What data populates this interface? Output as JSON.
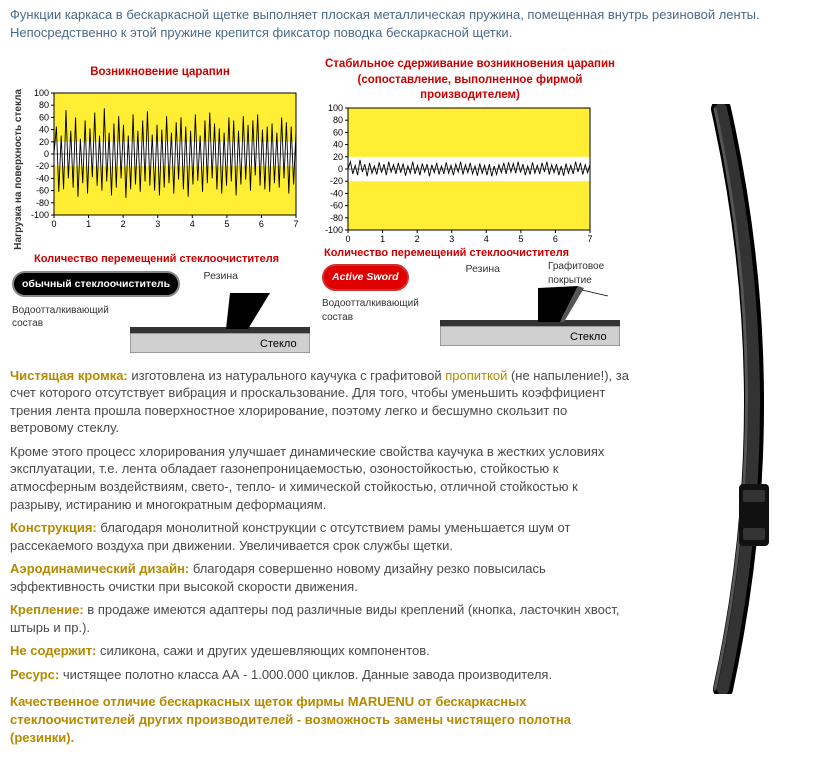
{
  "intro": "Функции каркаса в бескаркасной щетке выполняет плоская металлическая пружина, помещенная внутрь резиновой ленты. Непосредственно к этой пружине крепится фиксатор поводка бескаркасной щетки.",
  "y_axis_label": "Нагрузка на поверхность стекла",
  "x_caption": "Количество перемещений стеклоочистителя",
  "chart_left": {
    "title": "Возникновение царапин",
    "ylim": [
      -100,
      100
    ],
    "yticks": [
      -100,
      -80,
      -60,
      -40,
      -20,
      0,
      20,
      40,
      60,
      80,
      100
    ],
    "xticks": [
      0,
      1,
      2,
      3,
      4,
      5,
      6,
      7
    ],
    "band_extent": 20,
    "badge_text": "обычный стеклоочиститель",
    "labels": {
      "rubber": "Резина",
      "coat": "Водоотталкивающий состав",
      "glass": "Стекло"
    },
    "series": [
      0,
      45,
      -62,
      30,
      -58,
      72,
      -40,
      38,
      -55,
      60,
      -70,
      25,
      -48,
      55,
      -65,
      42,
      -38,
      68,
      -52,
      30,
      -60,
      75,
      -45,
      35,
      -68,
      50,
      -55,
      62,
      -40,
      48,
      -72,
      30,
      -58,
      65,
      -50,
      38,
      -62,
      55,
      -45,
      70,
      -52,
      32,
      -60,
      48,
      -68,
      40,
      -55,
      62,
      -48,
      35,
      -65,
      52,
      -42,
      60,
      -58,
      45,
      -70,
      38,
      -50,
      65,
      -44,
      30,
      -62,
      55,
      -48,
      68,
      -40,
      50,
      -58,
      42,
      -65,
      35,
      -52,
      60,
      -45,
      55,
      -68,
      38,
      -50,
      62,
      -42,
      48,
      -60,
      55,
      -35,
      65,
      -52,
      40,
      -58,
      45,
      -62,
      50,
      -48,
      35,
      -55,
      60,
      -40,
      52,
      -65,
      45,
      -50,
      38
    ]
  },
  "chart_right": {
    "title": "Стабильное сдерживание возникновения царапин (сопоставление, выполненное фирмой производителем)",
    "ylim": [
      -100,
      100
    ],
    "yticks": [
      -100,
      -80,
      -60,
      -40,
      -20,
      0,
      20,
      40,
      60,
      80,
      100
    ],
    "xticks": [
      0,
      1,
      2,
      3,
      4,
      5,
      6,
      7
    ],
    "band_extent": 20,
    "badge_text": "Active Sword",
    "labels": {
      "rubber": "Резина",
      "graphite": "Графитовое покрытие",
      "coat": "Водоотталкивающий состав",
      "glass": "Стекло"
    },
    "series": [
      0,
      12,
      -8,
      6,
      -10,
      15,
      -5,
      8,
      -12,
      10,
      -7,
      5,
      -9,
      11,
      -6,
      8,
      -10,
      12,
      -5,
      7,
      -8,
      10,
      -6,
      9,
      -11,
      5,
      -7,
      12,
      -8,
      6,
      -10,
      9,
      -5,
      8,
      -12,
      7,
      -6,
      10,
      -9,
      5,
      -8,
      11,
      -7,
      6,
      -10,
      8,
      -5,
      12,
      -9,
      7,
      -6,
      10,
      -8,
      5,
      -11,
      9,
      -7,
      6,
      -10,
      8,
      -12,
      5,
      -9,
      7,
      -6,
      10,
      -8,
      11,
      -5,
      9,
      -7,
      12,
      -6,
      8,
      -10,
      5,
      -9,
      11,
      -7,
      6,
      -8,
      10,
      -5,
      12,
      -9,
      7,
      -6,
      8,
      -10,
      5,
      -11,
      9,
      -7,
      6,
      -8,
      12,
      -5,
      10,
      -9,
      7,
      -6,
      8
    ]
  },
  "colors": {
    "band": "#ffee33",
    "axis": "#000",
    "grid": "#aaa",
    "wave": "#000",
    "text": "#4a4a4a",
    "glass_fill": "#d0d0d0",
    "coat_fill": "#333",
    "rubber_fill": "#000"
  },
  "text": {
    "edge_label": "Чистящая кромка:",
    "edge_body": " изготовлена из натурального каучука с графитовой ",
    "edge_hl": "пропиткой",
    "edge_body2": " (не напыление!), за счет которого отсутствует вибрация и проскальзование. Для того, чтобы уменьшить коэффициент трения лента прошла поверхностное хлорирование, поэтому легко и бесшумно скользит по ветровому стеклу.",
    "chlor": "Кроме этого процесс хлорирования улучшает динамические свойства каучука в жестких условиях эксплуатации, т.е. лента обладает газонепроницаемостью, озоностойкостью, стойкостью к атмосферным воздействиям, свето-, тепло- и химической стойкостью, отличной стойкостью к разрыву, истиранию и многократным деформациям.",
    "constr_label": "Конструкция:",
    "constr_body": " благодаря монолитной конструкции с отсутствием рамы уменьшается шум от рассекаемого воздуха при движении. Увеличивается срок службы щетки.",
    "aero_label": "Аэродинамический дизайн:",
    "aero_body": " благодаря совершенно новому дизайну резко повысилась эффективность очистки при высокой скорости движения.",
    "mount_label": "Крепление:",
    "mount_body": " в продаже имеются адаптеры под различные виды креплений (кнопка, ласточкин хвост, штырь и пр.).",
    "nocontain_label": "Не содержит:",
    "nocontain_body": " силикона, сажи и других удешевляющих компонентов.",
    "res_label": "Ресурс:",
    "res_body": " чистящее полотно класса АА - 1.000.000 циклов. Данные завода производителя.",
    "quality": "Качественное отличие бескаркасных щеток фирмы MARUENU от бескаркасных стеклоочистителей других производителей - возможность замены чистящего полотна (резинки)."
  }
}
